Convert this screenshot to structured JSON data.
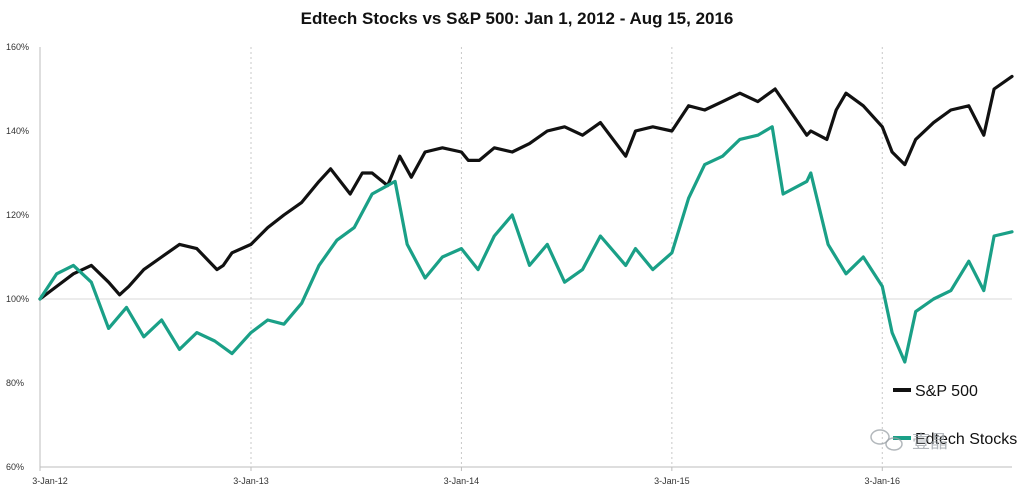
{
  "chart_data": {
    "type": "line",
    "title": "Edtech Stocks vs S&P 500: Jan 1, 2012 - Aug 15, 2016",
    "xlabel": "",
    "ylabel": "",
    "x_ticks": [
      "3-Jan-12",
      "3-Jan-13",
      "3-Jan-14",
      "3-Jan-15",
      "3-Jan-16"
    ],
    "y_ticks": [
      "60%",
      "80%",
      "100%",
      "120%",
      "140%",
      "160%"
    ],
    "ylim": [
      60,
      160
    ],
    "xlim": [
      "2012-01-03",
      "2016-08-15"
    ],
    "grid": "vertical dotted at year starts; horizontal reference at 100%",
    "legend_position": "bottom-right",
    "series": [
      {
        "name": "S&P 500",
        "color": "#111111",
        "x": [
          "2012-01-03",
          "2012-02-01",
          "2012-03-01",
          "2012-04-01",
          "2012-05-01",
          "2012-05-20",
          "2012-06-05",
          "2012-07-01",
          "2012-08-01",
          "2012-09-01",
          "2012-10-01",
          "2012-11-05",
          "2012-11-16",
          "2012-12-01",
          "2013-01-03",
          "2013-02-01",
          "2013-03-01",
          "2013-04-01",
          "2013-05-01",
          "2013-05-21",
          "2013-06-24",
          "2013-07-15",
          "2013-08-01",
          "2013-08-28",
          "2013-09-18",
          "2013-10-08",
          "2013-11-01",
          "2013-12-01",
          "2014-01-03",
          "2014-01-15",
          "2014-02-03",
          "2014-03-01",
          "2014-04-01",
          "2014-05-01",
          "2014-06-01",
          "2014-07-01",
          "2014-08-01",
          "2014-09-01",
          "2014-10-15",
          "2014-11-01",
          "2014-12-01",
          "2015-01-03",
          "2015-02-01",
          "2015-03-01",
          "2015-04-01",
          "2015-05-01",
          "2015-06-01",
          "2015-07-01",
          "2015-08-25",
          "2015-09-01",
          "2015-09-29",
          "2015-10-15",
          "2015-11-01",
          "2015-12-01",
          "2016-01-03",
          "2016-01-20",
          "2016-02-11",
          "2016-03-01",
          "2016-04-01",
          "2016-05-01",
          "2016-06-01",
          "2016-06-27",
          "2016-07-15",
          "2016-08-15"
        ],
        "values": [
          100,
          103,
          106,
          108,
          104,
          101,
          103,
          107,
          110,
          113,
          112,
          107,
          108,
          111,
          113,
          117,
          120,
          123,
          128,
          131,
          125,
          130,
          130,
          127,
          134,
          129,
          135,
          136,
          135,
          133,
          133,
          136,
          135,
          137,
          140,
          141,
          139,
          142,
          134,
          140,
          141,
          140,
          146,
          145,
          147,
          149,
          147,
          150,
          139,
          140,
          138,
          145,
          149,
          146,
          141,
          135,
          132,
          138,
          142,
          145,
          146,
          139,
          150,
          153
        ]
      },
      {
        "name": "Edtech Stocks",
        "color": "#1aa087",
        "x": [
          "2012-01-03",
          "2012-02-01",
          "2012-03-01",
          "2012-04-01",
          "2012-05-01",
          "2012-06-01",
          "2012-07-01",
          "2012-08-01",
          "2012-09-01",
          "2012-10-01",
          "2012-11-01",
          "2012-12-01",
          "2013-01-03",
          "2013-02-01",
          "2013-03-01",
          "2013-04-01",
          "2013-05-01",
          "2013-06-01",
          "2013-07-01",
          "2013-08-01",
          "2013-09-10",
          "2013-10-01",
          "2013-11-01",
          "2013-12-01",
          "2014-01-03",
          "2014-02-01",
          "2014-03-01",
          "2014-04-01",
          "2014-05-01",
          "2014-06-01",
          "2014-07-01",
          "2014-08-01",
          "2014-09-01",
          "2014-10-15",
          "2014-11-01",
          "2014-12-01",
          "2015-01-03",
          "2015-02-01",
          "2015-03-01",
          "2015-04-01",
          "2015-05-01",
          "2015-06-01",
          "2015-06-26",
          "2015-07-15",
          "2015-08-25",
          "2015-09-01",
          "2015-10-01",
          "2015-11-01",
          "2015-12-01",
          "2016-01-03",
          "2016-01-20",
          "2016-02-11",
          "2016-03-01",
          "2016-04-01",
          "2016-05-01",
          "2016-06-01",
          "2016-06-27",
          "2016-07-15",
          "2016-08-15"
        ],
        "values": [
          100,
          106,
          108,
          104,
          93,
          98,
          91,
          95,
          88,
          92,
          90,
          87,
          92,
          95,
          94,
          99,
          108,
          114,
          117,
          125,
          128,
          113,
          105,
          110,
          112,
          107,
          115,
          120,
          108,
          113,
          104,
          107,
          115,
          108,
          112,
          107,
          111,
          124,
          132,
          134,
          138,
          139,
          141,
          125,
          128,
          130,
          113,
          106,
          110,
          103,
          92,
          85,
          97,
          100,
          102,
          109,
          102,
          115,
          116
        ]
      }
    ]
  },
  "legend": {
    "items": [
      {
        "label": "S&P 500",
        "color": "#111111"
      },
      {
        "label": "Edtech Stocks",
        "color": "#1aa087"
      }
    ]
  },
  "watermark": {
    "text": "壹晶"
  }
}
